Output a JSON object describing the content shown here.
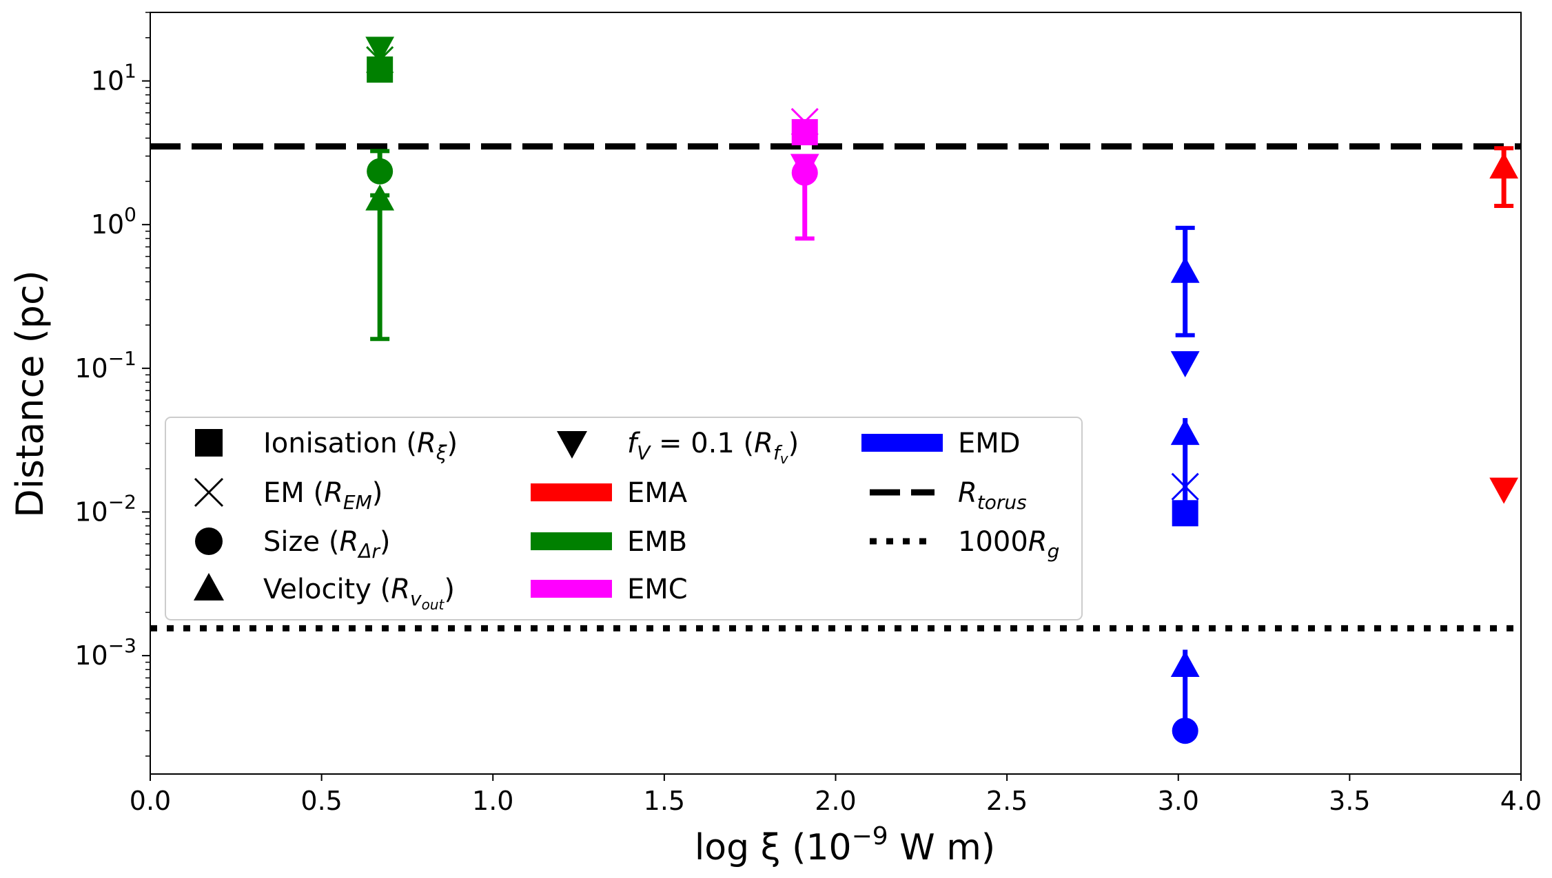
{
  "chart_data": {
    "type": "scatter",
    "xlabel": "log ξ (10",
    "xlabel_exp": "−9",
    "xlabel_tail": " W m)",
    "ylabel": "Distance (pc)",
    "yscale": "log",
    "xlim": [
      0.0,
      4.0
    ],
    "ylim": [
      0.00015,
      30
    ],
    "x_ticks": [
      0.0,
      0.5,
      1.0,
      1.5,
      2.0,
      2.5,
      3.0,
      3.5,
      4.0
    ],
    "x_tick_labels": [
      "0.0",
      "0.5",
      "1.0",
      "1.5",
      "2.0",
      "2.5",
      "3.0",
      "3.5",
      "4.0"
    ],
    "y_ticks": [
      {
        "value": 10,
        "base": "10",
        "exp": "1"
      },
      {
        "value": 1,
        "base": "10",
        "exp": "0"
      },
      {
        "value": 0.1,
        "base": "10",
        "exp": "−1"
      },
      {
        "value": 0.01,
        "base": "10",
        "exp": "−2"
      },
      {
        "value": 0.001,
        "base": "10",
        "exp": "−3"
      }
    ],
    "hlines": [
      {
        "name": "R_torus",
        "y": 3.5,
        "style": "dashed",
        "color": "#000000"
      },
      {
        "name": "1000R_g",
        "y": 0.00155,
        "style": "dotted",
        "color": "#000000"
      }
    ],
    "series": [
      {
        "name": "EMA",
        "color": "#ff0000",
        "points": [
          {
            "marker": "triangle-up",
            "x": 3.95,
            "y": 2.5,
            "yerr_low": 1.35,
            "yerr_high": 3.4
          },
          {
            "marker": "triangle-down",
            "x": 3.95,
            "y": 0.0145
          }
        ]
      },
      {
        "name": "EMB",
        "color": "#008000",
        "points": [
          {
            "marker": "triangle-down",
            "x": 0.67,
            "y": 17
          },
          {
            "marker": "x",
            "x": 0.67,
            "y": 14
          },
          {
            "marker": "square",
            "x": 0.67,
            "y": 12
          },
          {
            "marker": "circle",
            "x": 0.67,
            "y": 2.35,
            "yerr_low": 2.35,
            "yerr_high": 3.25
          },
          {
            "marker": "triangle-up",
            "x": 0.67,
            "y": 1.5,
            "yerr_low": 0.16,
            "yerr_high": 1.6
          }
        ]
      },
      {
        "name": "EMC",
        "color": "#ff00ff",
        "points": [
          {
            "marker": "x",
            "x": 1.91,
            "y": 5.2
          },
          {
            "marker": "square",
            "x": 1.91,
            "y": 4.4
          },
          {
            "marker": "triangle-down",
            "x": 1.91,
            "y": 2.6
          },
          {
            "marker": "circle",
            "x": 1.91,
            "y": 2.3,
            "yerr_low": 0.8,
            "yerr_high": 2.6
          }
        ]
      },
      {
        "name": "EMD",
        "color": "#0000ff",
        "points": [
          {
            "marker": "triangle-up",
            "x": 3.02,
            "y": 0.47,
            "yerr_low": 0.17,
            "yerr_high": 0.95
          },
          {
            "marker": "triangle-down",
            "x": 3.02,
            "y": 0.11
          },
          {
            "marker": "triangle-up",
            "x": 3.02,
            "y": 0.035
          },
          {
            "marker": "x",
            "x": 3.02,
            "y": 0.015
          },
          {
            "marker": "square",
            "x": 3.02,
            "y": 0.0098
          },
          {
            "marker": "circle",
            "x": 3.02,
            "y": 0.0003
          },
          {
            "marker": "triangle-up",
            "x": 3.02,
            "y": 0.00085
          }
        ],
        "arrows": [
          {
            "from": 0.0098,
            "to": 0.045
          },
          {
            "from": 0.0003,
            "to": 0.0011
          }
        ]
      }
    ],
    "legend": {
      "placement": "center-left",
      "col1": [
        {
          "marker": "square",
          "label": "Ionisation (",
          "sym": "R",
          "sub": "ξ",
          "close": ")"
        },
        {
          "marker": "x",
          "label": "EM (",
          "sym": "R",
          "sub": "EM",
          "close": ")"
        },
        {
          "marker": "circle",
          "label": "Size (",
          "sym": "R",
          "sub": "Δr",
          "close": ")"
        },
        {
          "marker": "triangle-up",
          "label": "Velocity (",
          "sym": "R",
          "sub": "v",
          "subsub": "out",
          "close": ")"
        }
      ],
      "col2": [
        {
          "marker": "triangle-down",
          "label_pre": "f",
          "label_sub": "V",
          "label_mid": " = 0.1 (",
          "sym": "R",
          "sub": "f",
          "subsub": "v",
          "close": ")"
        },
        {
          "patch": "#ff0000",
          "label": "EMA"
        },
        {
          "patch": "#008000",
          "label": "EMB"
        },
        {
          "patch": "#ff00ff",
          "label": "EMC"
        }
      ],
      "col3": [
        {
          "patch": "#0000ff",
          "label": "EMD"
        },
        {
          "line": "dashed",
          "sym": "R",
          "sub": "torus"
        },
        {
          "line": "dotted",
          "pre": "1000",
          "sym": "R",
          "sub": "g"
        }
      ]
    }
  }
}
